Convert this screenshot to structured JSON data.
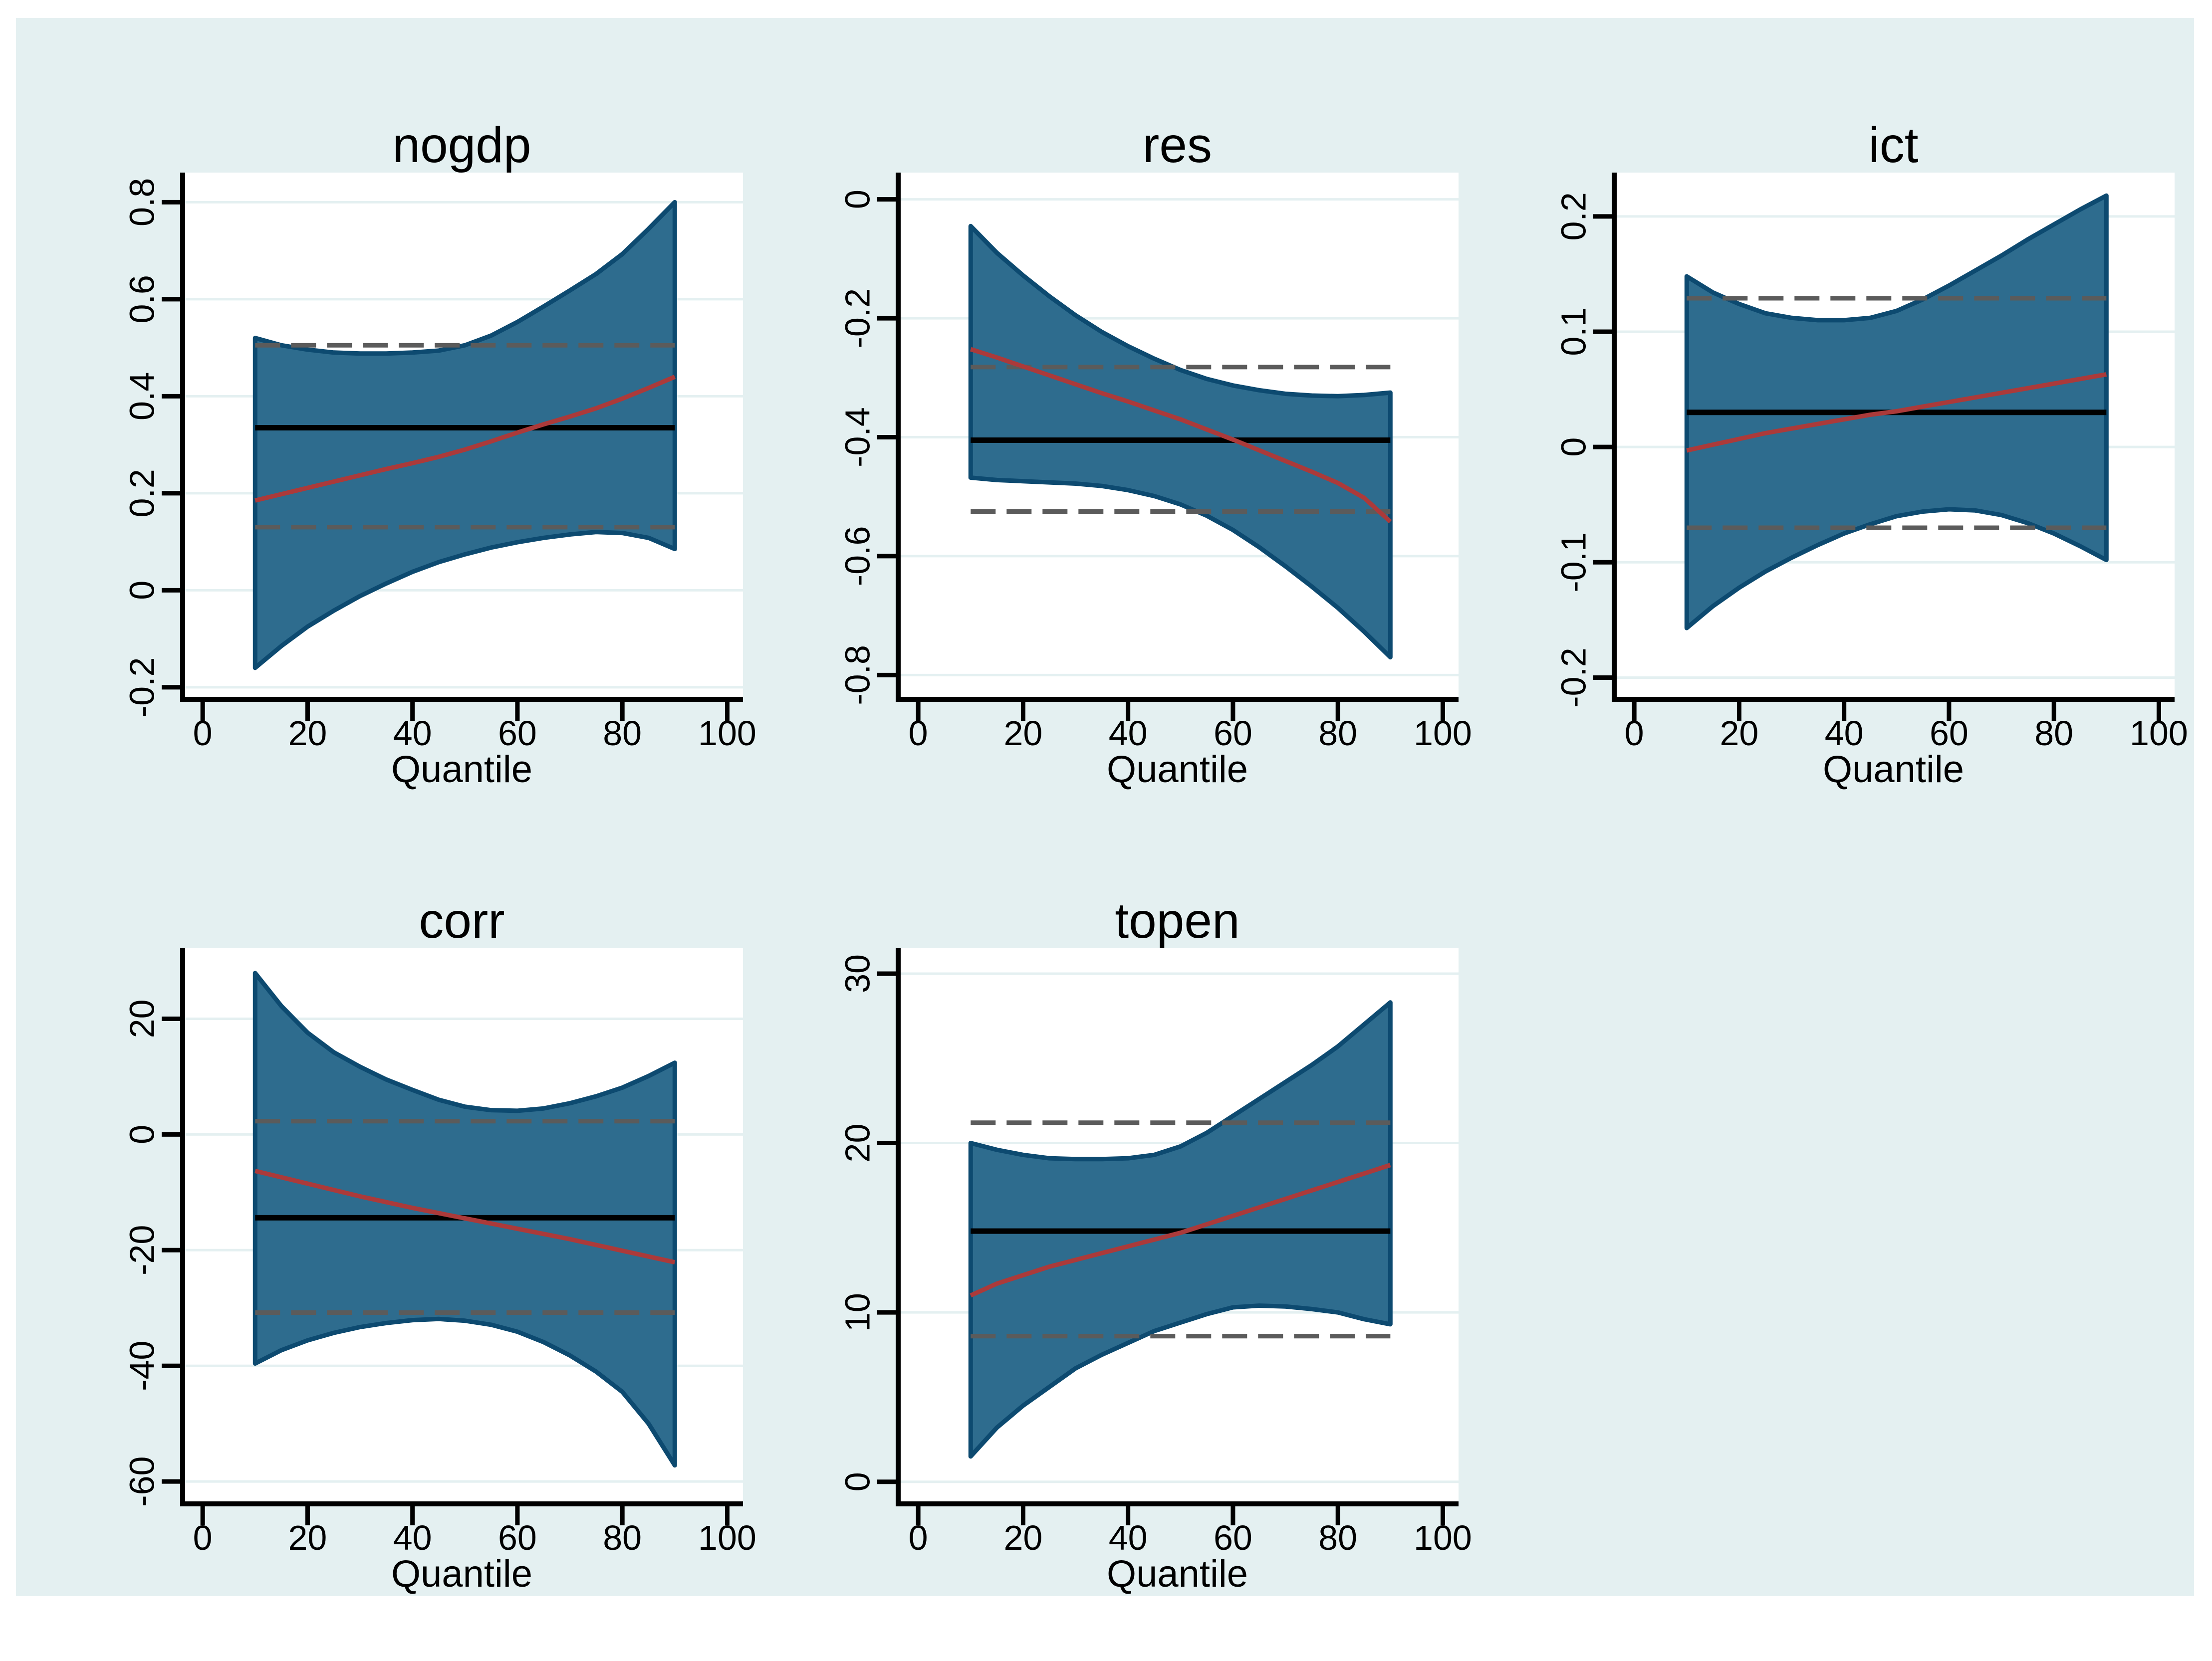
{
  "styles": {
    "page_background": "#ffffff",
    "canvas_background": "#e4f0f1",
    "plot_background": "#ffffff",
    "gridline_color": "#e4f0f1",
    "axis_color": "#000000",
    "text_color": "#000000",
    "band_fill": "#2e6c8e",
    "band_edge": "#0d4a70",
    "quantile_line_color": "#ab3a3a",
    "ols_line_color": "#000000",
    "ols_ci_dash_color": "#5b5b5b"
  },
  "chart_data": [
    {
      "type": "area",
      "title": "nogdp",
      "xlabel": "Quantile",
      "x": {
        "domain": [
          -4.2,
          103
        ],
        "ticks": [
          0,
          20,
          40,
          60,
          80,
          100
        ],
        "tick_labels": [
          "0",
          "20",
          "40",
          "60",
          "80",
          "100"
        ]
      },
      "y": {
        "domain": [
          -0.23,
          0.861
        ],
        "ticks": [
          0.8,
          0.6,
          0.4,
          0.2,
          0,
          -0.2
        ],
        "tick_labels": [
          "0.8",
          "0.6",
          "0.4",
          "0.2",
          "0",
          "-0.2"
        ]
      },
      "quantiles": [
        10,
        15,
        20,
        25,
        30,
        35,
        40,
        45,
        50,
        55,
        60,
        65,
        70,
        75,
        80,
        85,
        90
      ],
      "band_upper": [
        0.52,
        0.505,
        0.496,
        0.49,
        0.488,
        0.488,
        0.49,
        0.494,
        0.505,
        0.525,
        0.553,
        0.585,
        0.618,
        0.652,
        0.693,
        0.745,
        0.8
      ],
      "band_lower": [
        -0.16,
        -0.115,
        -0.075,
        -0.042,
        -0.012,
        0.014,
        0.038,
        0.058,
        0.074,
        0.088,
        0.099,
        0.108,
        0.115,
        0.12,
        0.118,
        0.108,
        0.085
      ],
      "quantile_estimate": [
        0.185,
        0.198,
        0.211,
        0.224,
        0.237,
        0.25,
        0.262,
        0.275,
        0.29,
        0.307,
        0.325,
        0.342,
        0.358,
        0.375,
        0.395,
        0.417,
        0.44
      ],
      "ols_estimate": 0.335,
      "ols_ci_upper": 0.505,
      "ols_ci_lower": 0.13
    },
    {
      "type": "area",
      "title": "res",
      "xlabel": "Quantile",
      "x": {
        "domain": [
          -4.2,
          103
        ],
        "ticks": [
          0,
          20,
          40,
          60,
          80,
          100
        ],
        "tick_labels": [
          "0",
          "20",
          "40",
          "60",
          "80",
          "100"
        ]
      },
      "y": {
        "domain": [
          -0.845,
          0.045
        ],
        "ticks": [
          0,
          -0.2,
          -0.4,
          -0.6,
          -0.8
        ],
        "tick_labels": [
          "0",
          "-0.2",
          "-0.4",
          "-0.6",
          "-0.8"
        ]
      },
      "quantiles": [
        10,
        15,
        20,
        25,
        30,
        35,
        40,
        45,
        50,
        55,
        60,
        65,
        70,
        75,
        80,
        85,
        90
      ],
      "band_upper": [
        -0.045,
        -0.09,
        -0.128,
        -0.163,
        -0.195,
        -0.223,
        -0.247,
        -0.268,
        -0.287,
        -0.302,
        -0.313,
        -0.321,
        -0.327,
        -0.33,
        -0.331,
        -0.329,
        -0.325
      ],
      "band_lower": [
        -0.468,
        -0.472,
        -0.474,
        -0.476,
        -0.478,
        -0.482,
        -0.489,
        -0.499,
        -0.513,
        -0.532,
        -0.556,
        -0.585,
        -0.617,
        -0.651,
        -0.687,
        -0.727,
        -0.77
      ],
      "quantile_estimate": [
        -0.252,
        -0.266,
        -0.281,
        -0.296,
        -0.311,
        -0.326,
        -0.34,
        -0.355,
        -0.37,
        -0.387,
        -0.404,
        -0.422,
        -0.44,
        -0.458,
        -0.477,
        -0.502,
        -0.542
      ],
      "ols_estimate": -0.405,
      "ols_ci_upper": -0.282,
      "ols_ci_lower": -0.525
    },
    {
      "type": "area",
      "title": "ict",
      "xlabel": "Quantile",
      "x": {
        "domain": [
          -4.2,
          103
        ],
        "ticks": [
          0,
          20,
          40,
          60,
          80,
          100
        ],
        "tick_labels": [
          "0",
          "20",
          "40",
          "60",
          "80",
          "100"
        ]
      },
      "y": {
        "domain": [
          -0.221,
          0.238
        ],
        "ticks": [
          0.2,
          0.1,
          0,
          -0.1,
          -0.2
        ],
        "tick_labels": [
          "0.2",
          "0.1",
          "0",
          "-0.1",
          "-0.2"
        ]
      },
      "quantiles": [
        10,
        15,
        20,
        25,
        30,
        35,
        40,
        45,
        50,
        55,
        60,
        65,
        70,
        75,
        80,
        85,
        90
      ],
      "band_upper": [
        0.148,
        0.134,
        0.124,
        0.116,
        0.112,
        0.11,
        0.11,
        0.112,
        0.118,
        0.128,
        0.14,
        0.153,
        0.166,
        0.18,
        0.193,
        0.206,
        0.218
      ],
      "band_lower": [
        -0.157,
        -0.138,
        -0.122,
        -0.108,
        -0.096,
        -0.085,
        -0.075,
        -0.067,
        -0.06,
        -0.056,
        -0.054,
        -0.055,
        -0.059,
        -0.066,
        -0.075,
        -0.086,
        -0.098
      ],
      "quantile_estimate": [
        -0.003,
        0.002,
        0.007,
        0.012,
        0.016,
        0.02,
        0.024,
        0.028,
        0.031,
        0.035,
        0.039,
        0.043,
        0.047,
        0.051,
        0.055,
        0.059,
        0.063
      ],
      "ols_estimate": 0.03,
      "ols_ci_upper": 0.129,
      "ols_ci_lower": -0.07
    },
    {
      "type": "area",
      "title": "corr",
      "xlabel": "Quantile",
      "x": {
        "domain": [
          -4.2,
          103
        ],
        "ticks": [
          0,
          20,
          40,
          60,
          80,
          100
        ],
        "tick_labels": [
          "0",
          "20",
          "40",
          "60",
          "80",
          "100"
        ]
      },
      "y": {
        "domain": [
          -64.3,
          32.2
        ],
        "ticks": [
          20,
          0,
          -20,
          -40,
          -60
        ],
        "tick_labels": [
          "20",
          "0",
          "-20",
          "-40",
          "-60"
        ]
      },
      "quantiles": [
        10,
        15,
        20,
        25,
        30,
        35,
        40,
        45,
        50,
        55,
        60,
        65,
        70,
        75,
        80,
        85,
        90
      ],
      "band_upper": [
        27.9,
        22.2,
        17.6,
        14.2,
        11.7,
        9.5,
        7.7,
        6.0,
        4.8,
        4.2,
        4.1,
        4.5,
        5.4,
        6.6,
        8.1,
        10.1,
        12.4
      ],
      "band_lower": [
        -39.6,
        -37.3,
        -35.6,
        -34.3,
        -33.3,
        -32.6,
        -32.1,
        -31.9,
        -32.2,
        -32.9,
        -34.1,
        -35.9,
        -38.2,
        -41.0,
        -44.5,
        -50.0,
        -57.2
      ],
      "quantile_estimate": [
        -6.3,
        -7.4,
        -8.5,
        -9.6,
        -10.7,
        -11.7,
        -12.7,
        -13.6,
        -14.5,
        -15.4,
        -16.3,
        -17.2,
        -18.1,
        -19.1,
        -20.1,
        -21.1,
        -22.1
      ],
      "ols_estimate": -14.4,
      "ols_ci_upper": 2.3,
      "ols_ci_lower": -30.8
    },
    {
      "type": "area",
      "title": "topen",
      "xlabel": "Quantile",
      "x": {
        "domain": [
          -4.2,
          103
        ],
        "ticks": [
          0,
          20,
          40,
          60,
          80,
          100
        ],
        "tick_labels": [
          "0",
          "20",
          "40",
          "60",
          "80",
          "100"
        ]
      },
      "y": {
        "domain": [
          -1.45,
          31.5
        ],
        "ticks": [
          30,
          20,
          10,
          0
        ],
        "tick_labels": [
          "30",
          "20",
          "10",
          "0"
        ]
      },
      "quantiles": [
        10,
        15,
        20,
        25,
        30,
        35,
        40,
        45,
        50,
        55,
        60,
        65,
        70,
        75,
        80,
        85,
        90
      ],
      "band_upper": [
        20.0,
        19.6,
        19.3,
        19.1,
        19.05,
        19.05,
        19.1,
        19.3,
        19.8,
        20.6,
        21.6,
        22.6,
        23.6,
        24.6,
        25.7,
        27.0,
        28.3
      ],
      "band_lower": [
        1.5,
        3.2,
        4.5,
        5.6,
        6.7,
        7.5,
        8.2,
        8.9,
        9.4,
        9.9,
        10.3,
        10.4,
        10.35,
        10.2,
        10.0,
        9.6,
        9.3
      ],
      "quantile_estimate": [
        11.0,
        11.7,
        12.2,
        12.7,
        13.1,
        13.5,
        13.9,
        14.3,
        14.7,
        15.2,
        15.7,
        16.2,
        16.7,
        17.2,
        17.7,
        18.2,
        18.7
      ],
      "ols_estimate": 14.8,
      "ols_ci_upper": 21.2,
      "ols_ci_lower": 8.6
    }
  ]
}
